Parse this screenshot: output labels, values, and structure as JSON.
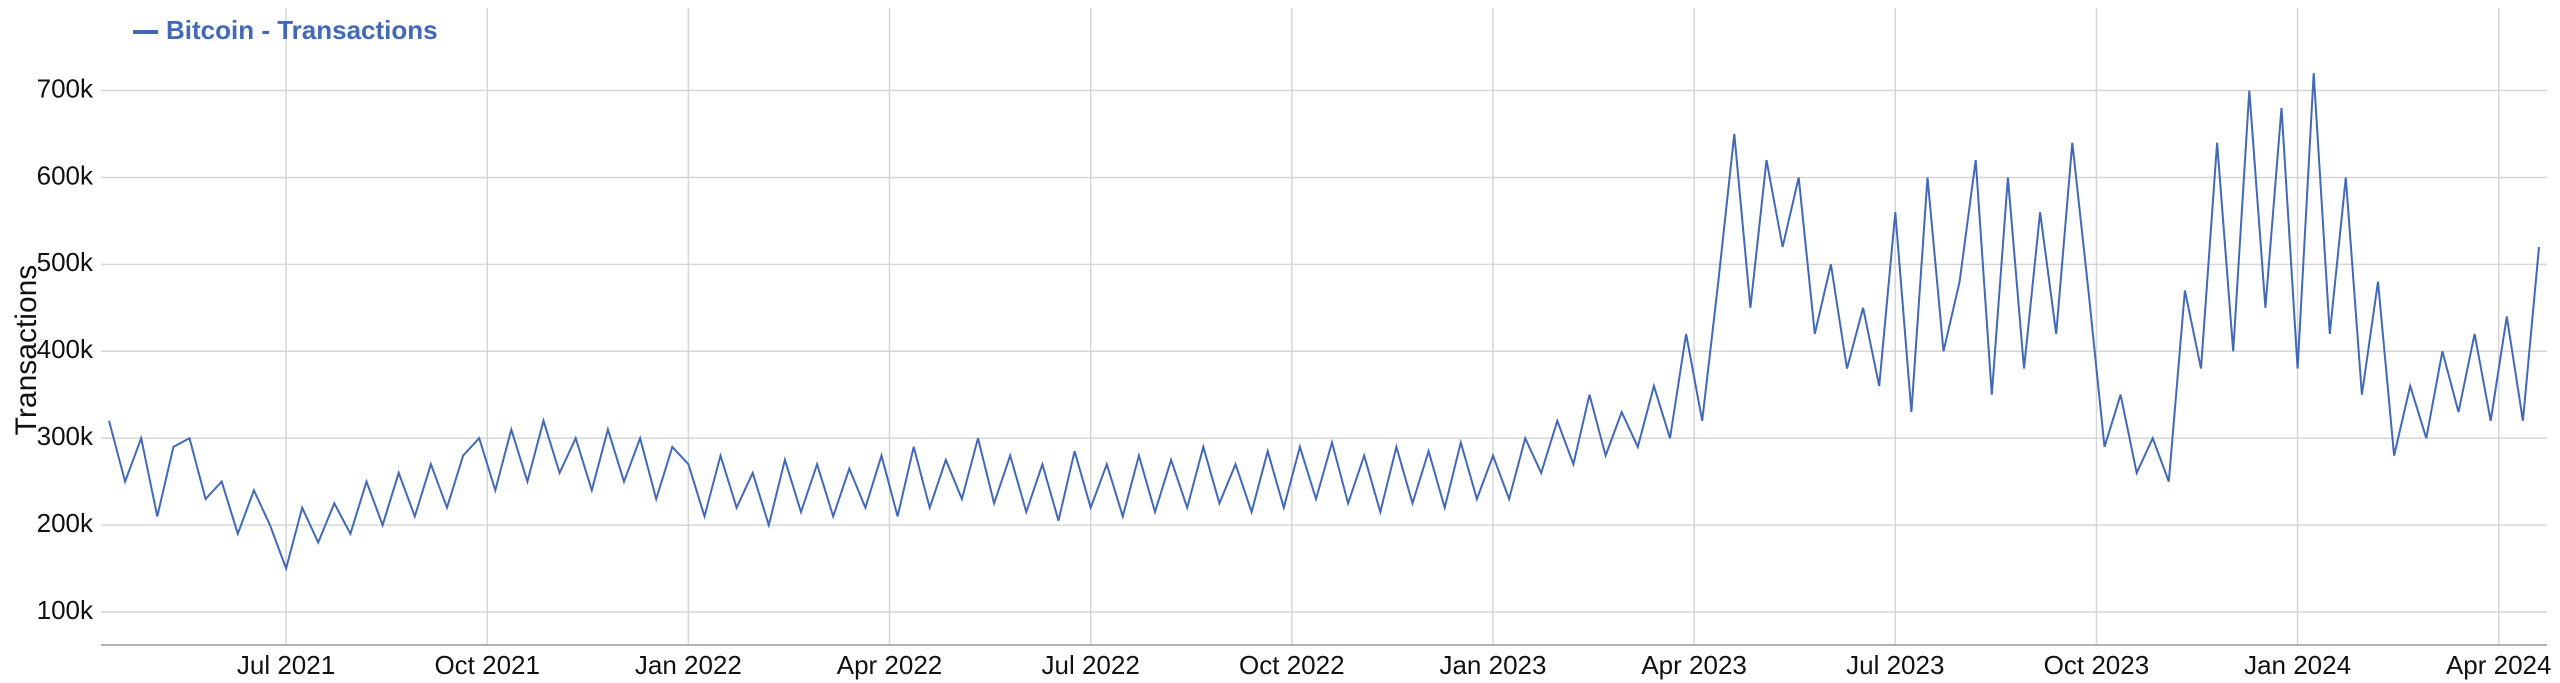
{
  "chart_data": {
    "type": "line",
    "ylabel": "Transactions",
    "legend": "top-left",
    "grid": true,
    "xlim": [
      2021.27,
      2024.31
    ],
    "xticks": [
      {
        "value": 2021.5,
        "label": "Jul 2021"
      },
      {
        "value": 2021.75,
        "label": "Oct 2021"
      },
      {
        "value": 2022.0,
        "label": "Jan 2022"
      },
      {
        "value": 2022.25,
        "label": "Apr 2022"
      },
      {
        "value": 2022.5,
        "label": "Jul 2022"
      },
      {
        "value": 2022.75,
        "label": "Oct 2022"
      },
      {
        "value": 2023.0,
        "label": "Jan 2023"
      },
      {
        "value": 2023.25,
        "label": "Apr 2023"
      },
      {
        "value": 2023.5,
        "label": "Jul 2023"
      },
      {
        "value": 2023.75,
        "label": "Oct 2023"
      },
      {
        "value": 2024.0,
        "label": "Jan 2024"
      },
      {
        "value": 2024.25,
        "label": "Apr 2024"
      }
    ],
    "ylim": [
      62000,
      795000
    ],
    "yticks": [
      {
        "value": 100000,
        "label": "100k"
      },
      {
        "value": 200000,
        "label": "200k"
      },
      {
        "value": 300000,
        "label": "300k"
      },
      {
        "value": 400000,
        "label": "400k"
      },
      {
        "value": 500000,
        "label": "500k"
      },
      {
        "value": 600000,
        "label": "600k"
      },
      {
        "value": 700000,
        "label": "700k"
      }
    ],
    "x": [
      2021.28,
      2021.3,
      2021.32,
      2021.34,
      2021.36,
      2021.38,
      2021.4,
      2021.42,
      2021.44,
      2021.46,
      2021.48,
      2021.5,
      2021.52,
      2021.54,
      2021.56,
      2021.58,
      2021.6,
      2021.62,
      2021.64,
      2021.66,
      2021.68,
      2021.7,
      2021.72,
      2021.74,
      2021.76,
      2021.78,
      2021.8,
      2021.82,
      2021.84,
      2021.86,
      2021.88,
      2021.9,
      2021.92,
      2021.94,
      2021.96,
      2021.98,
      2022.0,
      2022.02,
      2022.04,
      2022.06,
      2022.08,
      2022.1,
      2022.12,
      2022.14,
      2022.16,
      2022.18,
      2022.2,
      2022.22,
      2022.24,
      2022.26,
      2022.28,
      2022.3,
      2022.32,
      2022.34,
      2022.36,
      2022.38,
      2022.4,
      2022.42,
      2022.44,
      2022.46,
      2022.48,
      2022.5,
      2022.52,
      2022.54,
      2022.56,
      2022.58,
      2022.6,
      2022.62,
      2022.64,
      2022.66,
      2022.68,
      2022.7,
      2022.72,
      2022.74,
      2022.76,
      2022.78,
      2022.8,
      2022.82,
      2022.84,
      2022.86,
      2022.88,
      2022.9,
      2022.92,
      2022.94,
      2022.96,
      2022.98,
      2023.0,
      2023.02,
      2023.04,
      2023.06,
      2023.08,
      2023.1,
      2023.12,
      2023.14,
      2023.16,
      2023.18,
      2023.2,
      2023.22,
      2023.24,
      2023.26,
      2023.28,
      2023.3,
      2023.32,
      2023.34,
      2023.36,
      2023.38,
      2023.4,
      2023.42,
      2023.44,
      2023.46,
      2023.48,
      2023.5,
      2023.52,
      2023.54,
      2023.56,
      2023.58,
      2023.6,
      2023.62,
      2023.64,
      2023.66,
      2023.68,
      2023.7,
      2023.72,
      2023.74,
      2023.76,
      2023.78,
      2023.8,
      2023.82,
      2023.84,
      2023.86,
      2023.88,
      2023.9,
      2023.92,
      2023.94,
      2023.96,
      2023.98,
      2024.0,
      2024.02,
      2024.04,
      2024.06,
      2024.08,
      2024.1,
      2024.12,
      2024.14,
      2024.16,
      2024.18,
      2024.2,
      2024.22,
      2024.24,
      2024.26,
      2024.28,
      2024.3
    ],
    "series": [
      {
        "name": "Bitcoin - Transactions",
        "color": "#4169b8",
        "values": [
          320000,
          250000,
          300000,
          210000,
          290000,
          300000,
          230000,
          250000,
          190000,
          240000,
          200000,
          150000,
          220000,
          180000,
          225000,
          190000,
          250000,
          200000,
          260000,
          210000,
          270000,
          220000,
          280000,
          300000,
          240000,
          310000,
          250000,
          320000,
          260000,
          300000,
          240000,
          310000,
          250000,
          300000,
          230000,
          290000,
          270000,
          210000,
          280000,
          220000,
          260000,
          200000,
          275000,
          215000,
          270000,
          210000,
          265000,
          220000,
          280000,
          210000,
          290000,
          220000,
          275000,
          230000,
          300000,
          225000,
          280000,
          215000,
          270000,
          205000,
          285000,
          220000,
          270000,
          210000,
          280000,
          215000,
          275000,
          220000,
          290000,
          225000,
          270000,
          215000,
          285000,
          220000,
          290000,
          230000,
          295000,
          225000,
          280000,
          215000,
          290000,
          225000,
          285000,
          220000,
          295000,
          230000,
          280000,
          230000,
          300000,
          260000,
          320000,
          270000,
          350000,
          280000,
          330000,
          290000,
          360000,
          300000,
          420000,
          320000,
          480000,
          650000,
          450000,
          620000,
          520000,
          600000,
          420000,
          500000,
          380000,
          450000,
          360000,
          560000,
          330000,
          600000,
          400000,
          480000,
          620000,
          350000,
          600000,
          380000,
          560000,
          420000,
          640000,
          470000,
          290000,
          350000,
          260000,
          300000,
          250000,
          470000,
          380000,
          640000,
          400000,
          700000,
          450000,
          680000,
          380000,
          720000,
          420000,
          600000,
          350000,
          480000,
          280000,
          360000,
          300000,
          400000,
          330000,
          420000,
          320000,
          440000,
          320000,
          520000
        ]
      }
    ]
  }
}
